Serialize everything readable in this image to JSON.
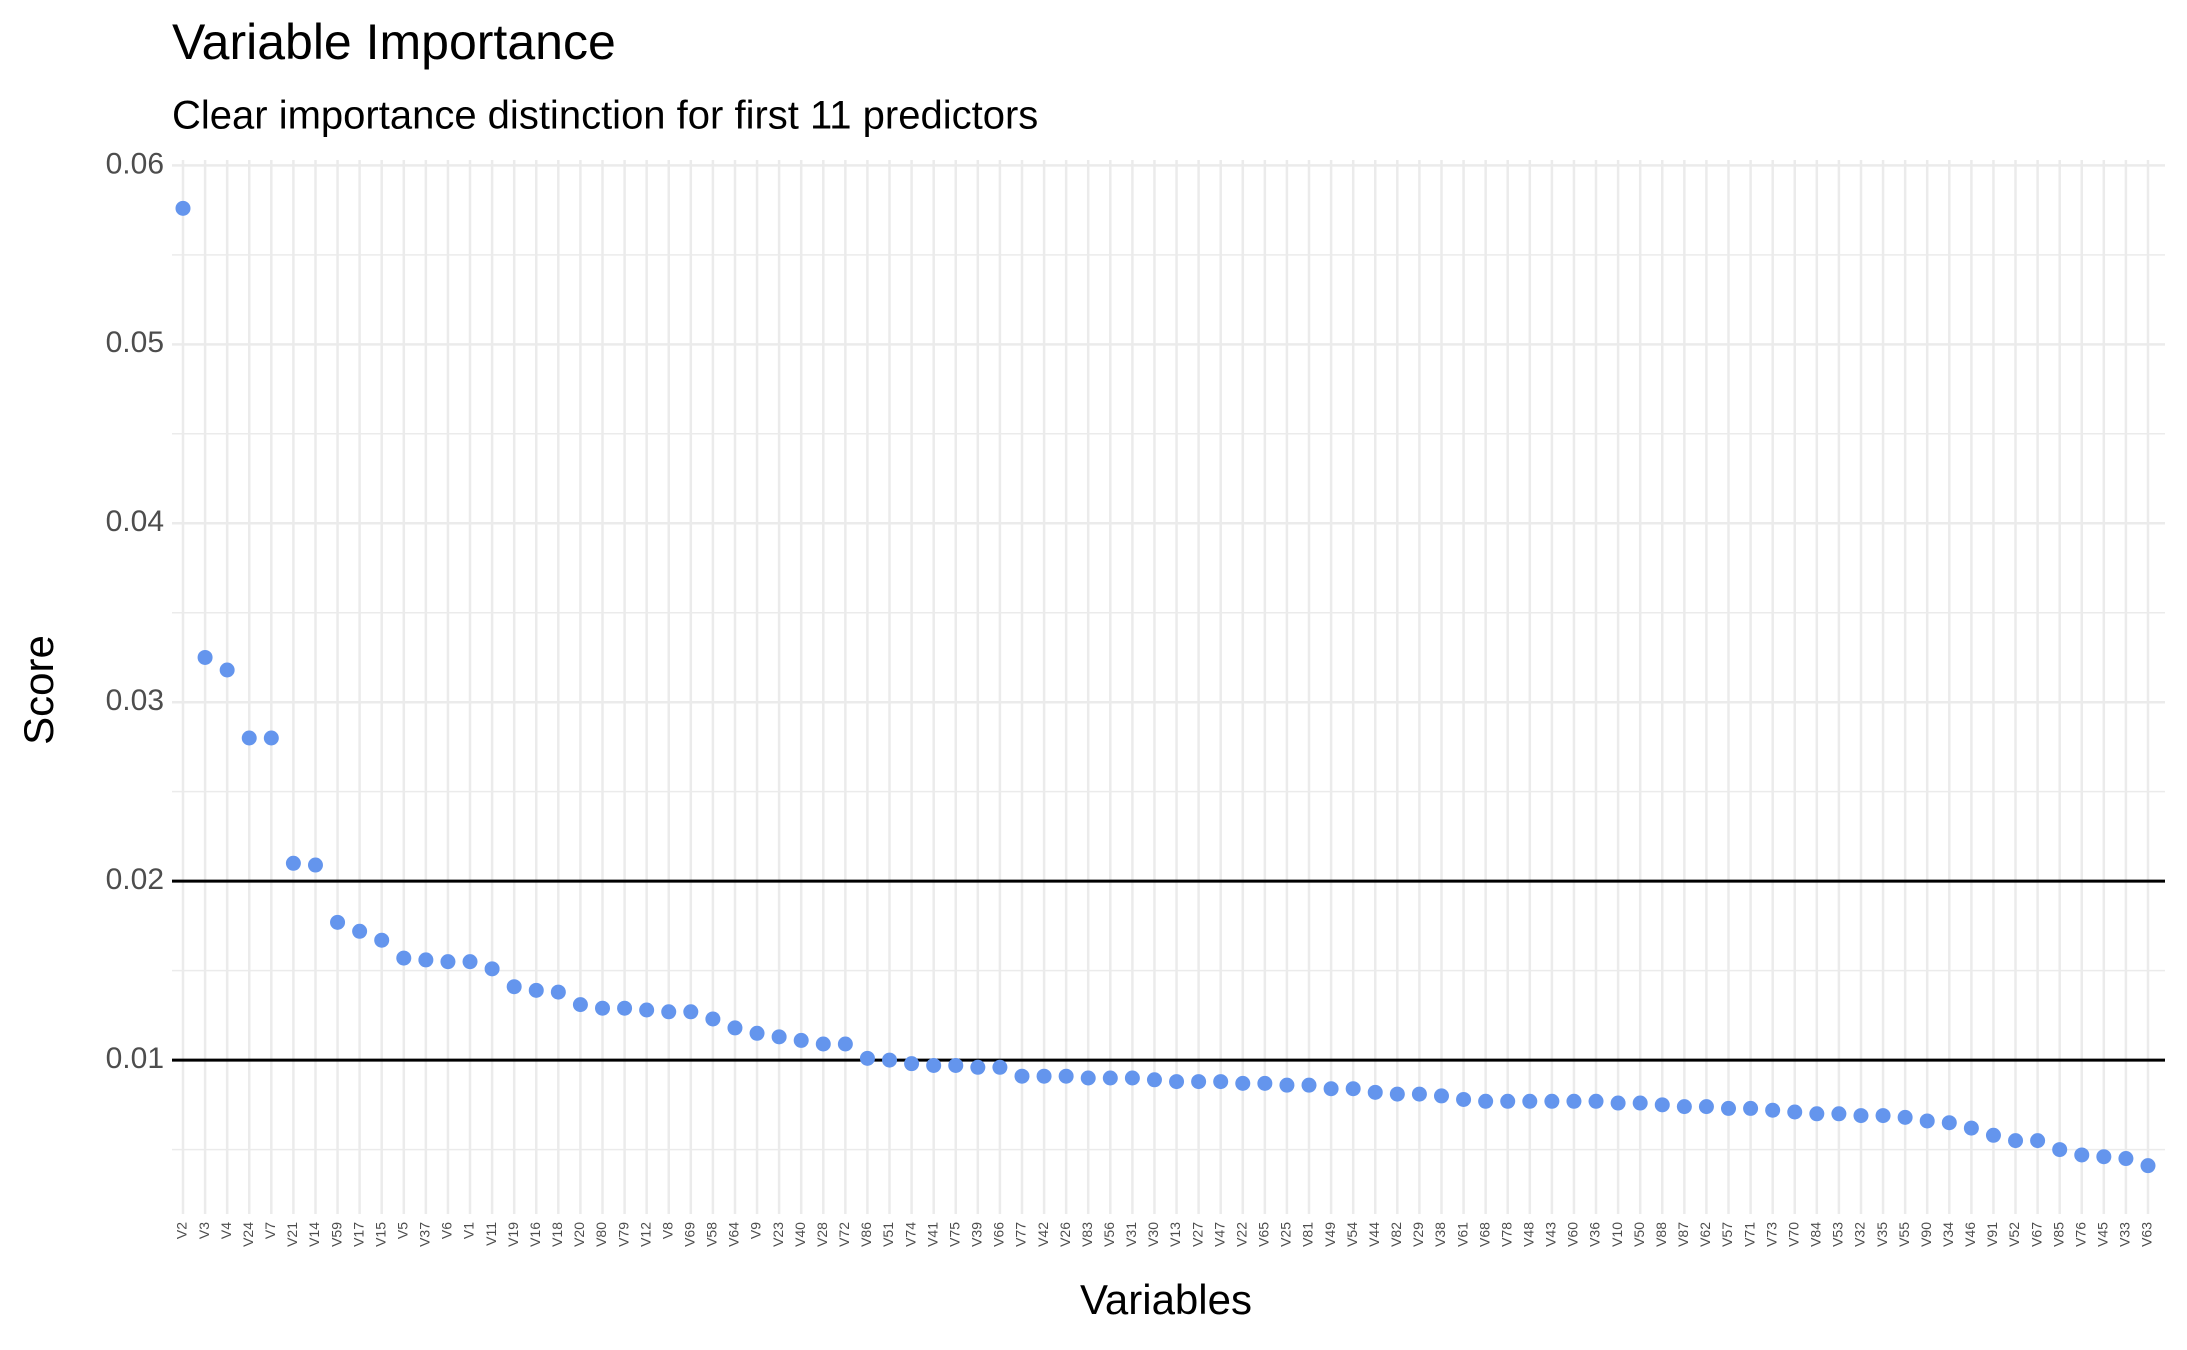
{
  "chart_data": {
    "type": "scatter",
    "title": "Variable Importance",
    "subtitle": "Clear importance distinction for first 11 predictors",
    "x_label": "Variables",
    "y_label": "Score",
    "color": "#6495ed",
    "grid": true,
    "categories": [
      "V2",
      "V3",
      "V4",
      "V24",
      "V7",
      "V21",
      "V14",
      "V59",
      "V17",
      "V15",
      "V5",
      "V37",
      "V6",
      "V1",
      "V11",
      "V19",
      "V16",
      "V18",
      "V20",
      "V80",
      "V79",
      "V12",
      "V8",
      "V69",
      "V58",
      "V64",
      "V9",
      "V23",
      "V40",
      "V28",
      "V72",
      "V86",
      "V51",
      "V74",
      "V41",
      "V75",
      "V39",
      "V66",
      "V77",
      "V42",
      "V26",
      "V83",
      "V56",
      "V31",
      "V30",
      "V13",
      "V27",
      "V47",
      "V22",
      "V65",
      "V25",
      "V81",
      "V49",
      "V54",
      "V44",
      "V82",
      "V29",
      "V38",
      "V61",
      "V68",
      "V78",
      "V48",
      "V43",
      "V60",
      "V36",
      "V10",
      "V50",
      "V88",
      "V87",
      "V62",
      "V57",
      "V71",
      "V73",
      "V70",
      "V84",
      "V53",
      "V32",
      "V35",
      "V55",
      "V90",
      "V34",
      "V46",
      "V91",
      "V52",
      "V67",
      "V85",
      "V76",
      "V45",
      "V33",
      "V63"
    ],
    "values": [
      0.0576,
      0.0325,
      0.0318,
      0.028,
      0.028,
      0.021,
      0.0209,
      0.0177,
      0.0172,
      0.0167,
      0.0157,
      0.0156,
      0.0155,
      0.0155,
      0.0151,
      0.0141,
      0.0139,
      0.0138,
      0.0131,
      0.0129,
      0.0129,
      0.0128,
      0.0127,
      0.0127,
      0.0123,
      0.0118,
      0.0115,
      0.0113,
      0.0111,
      0.0109,
      0.0109,
      0.0101,
      0.01,
      0.0098,
      0.0097,
      0.0097,
      0.0096,
      0.0096,
      0.0091,
      0.0091,
      0.0091,
      0.009,
      0.009,
      0.009,
      0.0089,
      0.0088,
      0.0088,
      0.0088,
      0.0087,
      0.0087,
      0.0086,
      0.0086,
      0.0084,
      0.0084,
      0.0082,
      0.0081,
      0.0081,
      0.008,
      0.0078,
      0.0077,
      0.0077,
      0.0077,
      0.0077,
      0.0077,
      0.0077,
      0.0076,
      0.0076,
      0.0075,
      0.0074,
      0.0074,
      0.0073,
      0.0073,
      0.0072,
      0.0071,
      0.007,
      0.007,
      0.0069,
      0.0069,
      0.0068,
      0.0066,
      0.0065,
      0.0062,
      0.0058,
      0.0055,
      0.0055,
      0.005,
      0.0047,
      0.0046,
      0.0045,
      0.0041
    ],
    "ylim": [
      0.0014,
      0.0603
    ],
    "yticks": [
      0.01,
      0.02,
      0.03,
      0.04,
      0.05,
      0.06
    ],
    "minor_yticks": [
      0.005,
      0.015,
      0.025,
      0.035,
      0.045,
      0.055
    ],
    "hlines": [
      0.01,
      0.02
    ]
  }
}
